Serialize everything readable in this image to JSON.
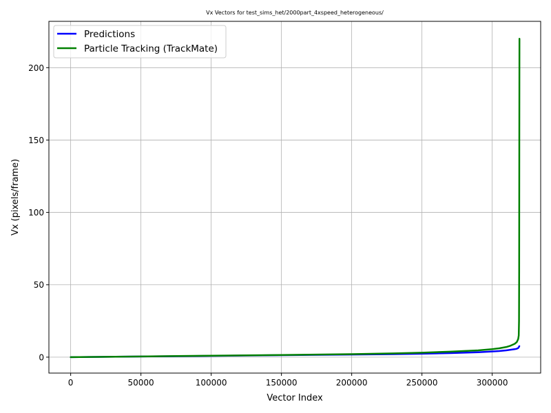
{
  "chart_data": {
    "type": "line",
    "title": "Vx Vectors for test_sims_het/2000part_4xspeed_heterogeneous/",
    "xlabel": "Vector Index",
    "ylabel": "Vx (pixels/frame)",
    "xlim": [
      -15500,
      334500
    ],
    "ylim": [
      -11,
      232
    ],
    "xticks": [
      0,
      50000,
      100000,
      150000,
      200000,
      250000,
      300000
    ],
    "yticks": [
      0,
      50,
      100,
      150,
      200
    ],
    "grid": true,
    "legend_position": "top-left",
    "series": [
      {
        "name": "Predictions",
        "color": "#0000ff",
        "x": [
          0,
          20000,
          50000,
          100000,
          150000,
          200000,
          230000,
          250000,
          270000,
          290000,
          300000,
          305000,
          310000,
          313000,
          316000,
          317500,
          318500,
          319000,
          319300
        ],
        "y": [
          0,
          0.15,
          0.45,
          0.9,
          1.35,
          1.8,
          2.1,
          2.4,
          2.8,
          3.4,
          3.9,
          4.2,
          4.7,
          5.1,
          5.5,
          5.8,
          6.3,
          7.0,
          7.6
        ]
      },
      {
        "name": "Particle Tracking (TrackMate)",
        "color": "#008000",
        "x": [
          0,
          20000,
          50000,
          100000,
          150000,
          200000,
          230000,
          250000,
          270000,
          290000,
          300000,
          305000,
          310000,
          313000,
          316000,
          317500,
          318500,
          318900,
          319100,
          319200,
          319300,
          319400
        ],
        "y": [
          0,
          0.2,
          0.5,
          1.0,
          1.5,
          2.1,
          2.6,
          3.1,
          3.8,
          4.7,
          5.5,
          6.1,
          7.0,
          7.9,
          9.2,
          10.4,
          12.5,
          15,
          25,
          60,
          150,
          220
        ]
      }
    ]
  }
}
